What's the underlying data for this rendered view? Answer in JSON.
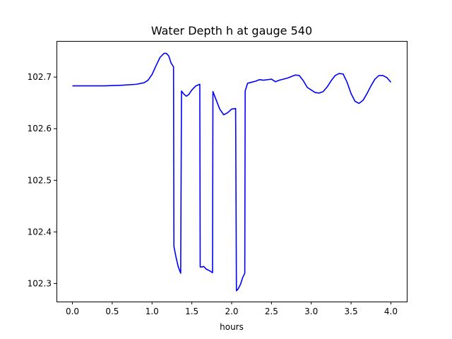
{
  "chart_data": {
    "type": "line",
    "title": "Water Depth h at gauge 540",
    "xlabel": "hours",
    "ylabel": "",
    "xlim": [
      -0.2,
      4.2
    ],
    "ylim": [
      102.265,
      102.77
    ],
    "xticks": [
      0.0,
      0.5,
      1.0,
      1.5,
      2.0,
      2.5,
      3.0,
      3.5,
      4.0
    ],
    "xtick_labels": [
      "0.0",
      "0.5",
      "1.0",
      "1.5",
      "2.0",
      "2.5",
      "3.0",
      "3.5",
      "4.0"
    ],
    "yticks": [
      102.3,
      102.4,
      102.5,
      102.6,
      102.7
    ],
    "ytick_labels": [
      "102.3",
      "102.4",
      "102.5",
      "102.6",
      "102.7"
    ],
    "grid": false,
    "series": [
      {
        "color": "#0000ff",
        "x": [
          0.0,
          0.2,
          0.4,
          0.6,
          0.8,
          0.9,
          0.95,
          1.0,
          1.05,
          1.1,
          1.15,
          1.18,
          1.21,
          1.24,
          1.27,
          1.275,
          1.3,
          1.33,
          1.36,
          1.37,
          1.4,
          1.43,
          1.46,
          1.5,
          1.55,
          1.6,
          1.605,
          1.62,
          1.65,
          1.68,
          1.72,
          1.76,
          1.765,
          1.8,
          1.85,
          1.9,
          1.95,
          2.0,
          2.05,
          2.06,
          2.08,
          2.11,
          2.14,
          2.165,
          2.17,
          2.2,
          2.25,
          2.3,
          2.35,
          2.4,
          2.5,
          2.55,
          2.6,
          2.7,
          2.75,
          2.8,
          2.85,
          2.9,
          2.95,
          3.0,
          3.05,
          3.1,
          3.15,
          3.2,
          3.25,
          3.3,
          3.35,
          3.4,
          3.45,
          3.5,
          3.55,
          3.6,
          3.65,
          3.7,
          3.75,
          3.8,
          3.85,
          3.9,
          3.95,
          4.0
        ],
        "y": [
          102.683,
          102.683,
          102.683,
          102.684,
          102.686,
          102.689,
          102.694,
          102.705,
          102.722,
          102.738,
          102.746,
          102.746,
          102.741,
          102.727,
          102.72,
          102.372,
          102.352,
          102.332,
          102.32,
          102.673,
          102.667,
          102.663,
          102.666,
          102.675,
          102.683,
          102.686,
          102.332,
          102.332,
          102.333,
          102.328,
          102.325,
          102.321,
          102.672,
          102.658,
          102.638,
          102.627,
          102.631,
          102.638,
          102.639,
          102.286,
          102.289,
          102.298,
          102.312,
          102.32,
          102.673,
          102.688,
          102.69,
          102.692,
          102.695,
          102.694,
          102.696,
          102.691,
          102.694,
          102.698,
          102.701,
          102.704,
          102.703,
          102.693,
          102.68,
          102.675,
          102.67,
          102.669,
          102.672,
          102.681,
          102.693,
          102.703,
          102.707,
          102.706,
          102.69,
          102.668,
          102.653,
          102.649,
          102.655,
          102.668,
          102.683,
          102.696,
          102.703,
          102.703,
          102.699,
          102.69
        ]
      }
    ]
  }
}
